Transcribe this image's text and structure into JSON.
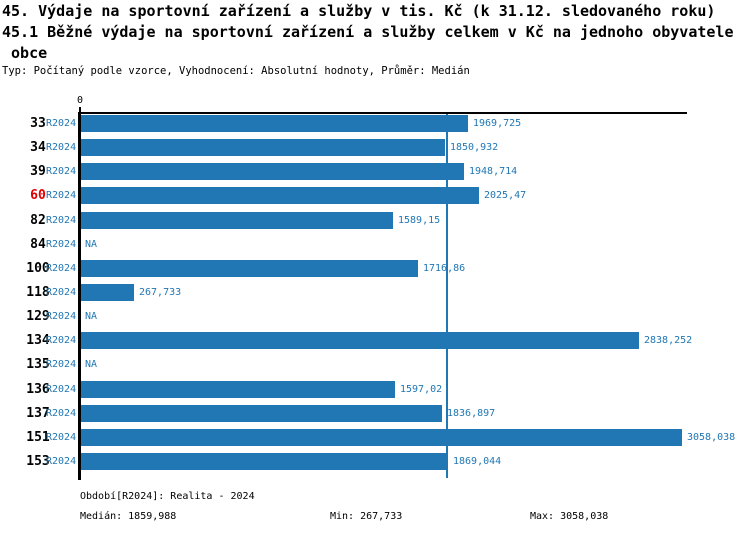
{
  "title": {
    "line1": "45. Výdaje na sportovní zařízení a služby v tis. Kč (k 31.12. sledovaného roku)",
    "line2": "45.1 Běžné výdaje na sportovní zařízení a služby celkem v Kč na jednoho obyvatele",
    "line3": " obce",
    "meta": "Typ: Počítaný podle vzorce, Vyhodnocení: Absolutní hodnoty, Průměr: Medián"
  },
  "chart_data": {
    "type": "bar",
    "orientation": "horizontal",
    "title": "45.1 Běžné výdaje na sportovní zařízení a služby celkem v Kč na jednoho obyvatele obce",
    "x_axis": {
      "zero_label": "0",
      "xlim": [
        0,
        3083
      ],
      "ticks": [
        0
      ]
    },
    "period": "R2024",
    "categories": [
      "33",
      "34",
      "39",
      "60",
      "82",
      "84",
      "100",
      "118",
      "129",
      "134",
      "135",
      "136",
      "137",
      "151",
      "153"
    ],
    "rows": [
      {
        "id": "33",
        "period": "R2024",
        "value": 1969.725,
        "value_label": "1969,725",
        "highlight": false
      },
      {
        "id": "34",
        "period": "R2024",
        "value": 1850.932,
        "value_label": "1850,932",
        "highlight": false
      },
      {
        "id": "39",
        "period": "R2024",
        "value": 1948.714,
        "value_label": "1948,714",
        "highlight": false
      },
      {
        "id": "60",
        "period": "R2024",
        "value": 2025.47,
        "value_label": "2025,47",
        "highlight": true
      },
      {
        "id": "82",
        "period": "R2024",
        "value": 1589.15,
        "value_label": "1589,15",
        "highlight": false
      },
      {
        "id": "84",
        "period": "R2024",
        "value": null,
        "value_label": "NA",
        "highlight": false
      },
      {
        "id": "100",
        "period": "R2024",
        "value": 1716.86,
        "value_label": "1716,86",
        "highlight": false
      },
      {
        "id": "118",
        "period": "R2024",
        "value": 267.733,
        "value_label": "267,733",
        "highlight": false
      },
      {
        "id": "129",
        "period": "R2024",
        "value": null,
        "value_label": "NA",
        "highlight": false
      },
      {
        "id": "134",
        "period": "R2024",
        "value": 2838.252,
        "value_label": "2838,252",
        "highlight": false
      },
      {
        "id": "135",
        "period": "R2024",
        "value": null,
        "value_label": "NA",
        "highlight": false
      },
      {
        "id": "136",
        "period": "R2024",
        "value": 1597.02,
        "value_label": "1597,02",
        "highlight": false
      },
      {
        "id": "137",
        "period": "R2024",
        "value": 1836.897,
        "value_label": "1836,897",
        "highlight": false
      },
      {
        "id": "151",
        "period": "R2024",
        "value": 3058.038,
        "value_label": "3058,038",
        "highlight": false
      },
      {
        "id": "153",
        "period": "R2024",
        "value": 1869.044,
        "value_label": "1869,044",
        "highlight": false
      }
    ],
    "median_value": 1859.988,
    "stats": {
      "median": 1859.988,
      "min": 267.733,
      "max": 3058.038
    },
    "colors": {
      "bar": "#2077b4",
      "blue_text": "#2077b4",
      "median_line": "#2077b4",
      "highlight_red": "#e00000",
      "axis": "#000000"
    },
    "legend_position": "none",
    "grid": false
  },
  "footer": {
    "period_line": "Období[R2024]: Realita - 2024",
    "median": "Medián: 1859,988",
    "min": "Min: 267,733",
    "max": "Max: 3058,038"
  }
}
